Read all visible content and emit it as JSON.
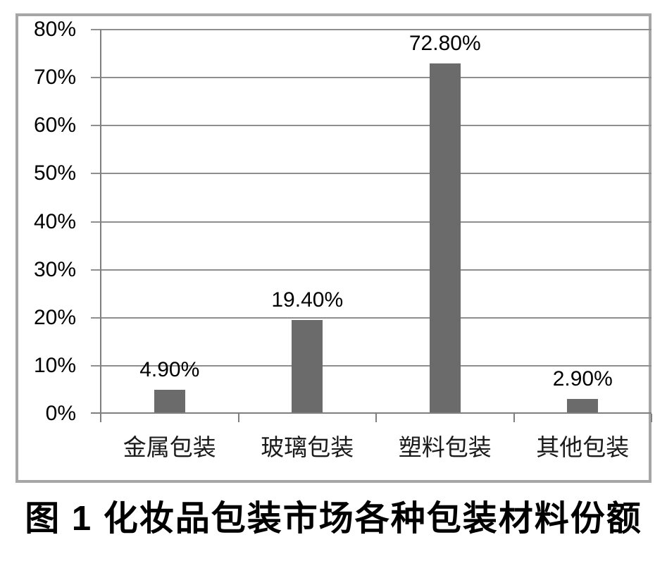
{
  "caption": "图 1 化妆品包装市场各种包装材料份额",
  "chart_data": {
    "type": "bar",
    "title": "",
    "xlabel": "",
    "ylabel": "",
    "categories": [
      "金属包装",
      "玻璃包装",
      "塑料包装",
      "其他包装"
    ],
    "values": [
      4.9,
      19.4,
      72.8,
      2.9
    ],
    "data_labels": [
      "4.90%",
      "19.40%",
      "72.80%",
      "2.90%"
    ],
    "y_tick_values": [
      80,
      70,
      60,
      50,
      40,
      30,
      20,
      10,
      0
    ],
    "y_tick_labels": [
      "80%",
      "70%",
      "60%",
      "50%",
      "40%",
      "30%",
      "20%",
      "10%",
      "0%"
    ],
    "ylim": [
      0,
      80
    ],
    "grid": "horizontal-on",
    "legend": "none",
    "bar_color": "#6b6b6b",
    "gridline_color": "#8f8f8f",
    "axis_color": "#7f7f7f",
    "frame_border_color": "#a6a6a6",
    "background_color": "#ffffff",
    "label_color": "#000000"
  }
}
